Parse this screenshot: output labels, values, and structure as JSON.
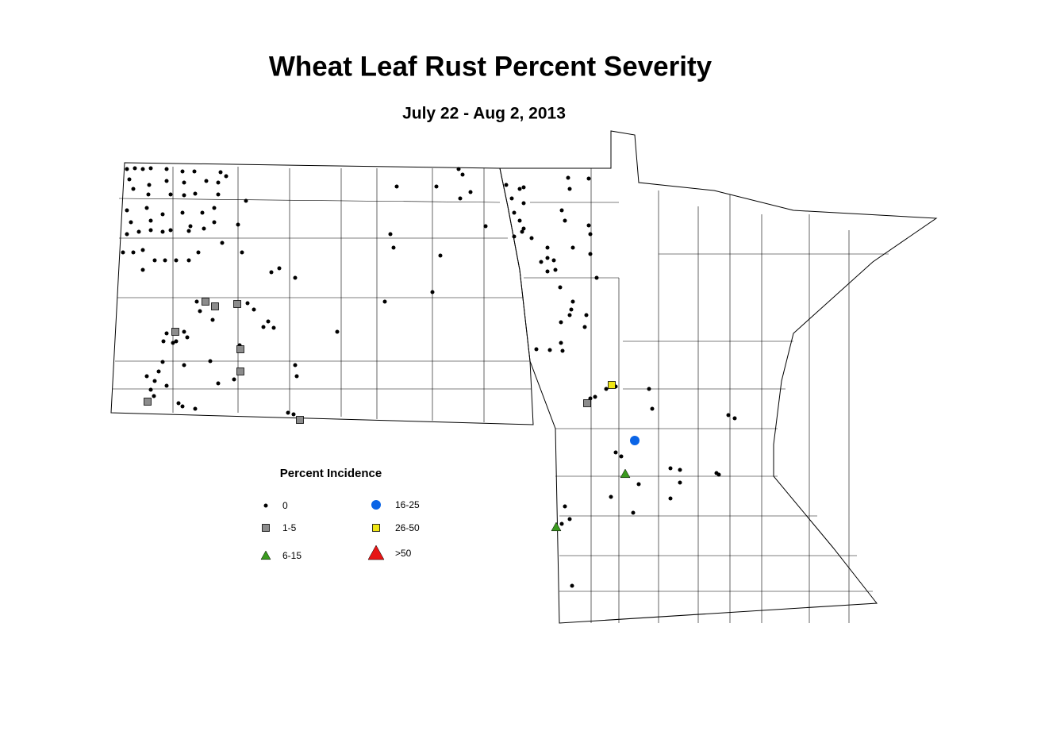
{
  "title": "Wheat Leaf Rust Percent Severity",
  "subtitle": "July 22 - Aug 2, 2013",
  "legend": {
    "title": "Percent Incidence",
    "items": [
      {
        "label": "0",
        "symbol": "dot",
        "color": "#000000"
      },
      {
        "label": "1-5",
        "symbol": "square",
        "color": "#8c8c8c"
      },
      {
        "label": "6-15",
        "symbol": "triangle",
        "color": "#3a9a1e"
      },
      {
        "label": "16-25",
        "symbol": "circle",
        "color": "#0a64e6"
      },
      {
        "label": "26-50",
        "symbol": "square",
        "color": "#f0e614"
      },
      {
        "label": ">50",
        "symbol": "triangle",
        "color": "#e61414"
      }
    ]
  }
}
